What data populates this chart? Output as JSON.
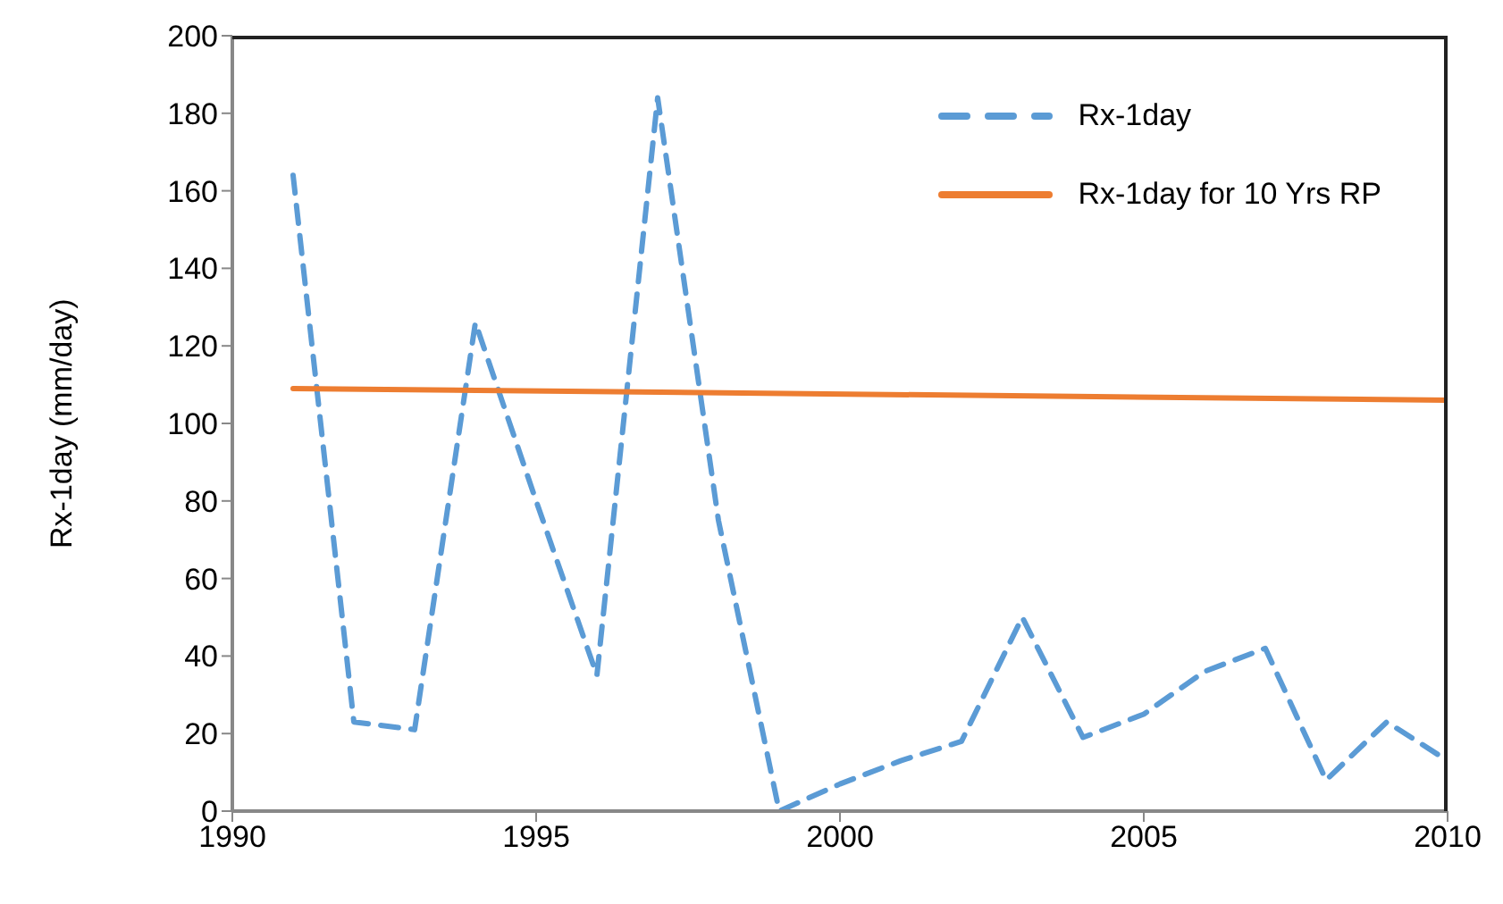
{
  "chart_data": {
    "type": "line",
    "ylabel": "Rx-1day (mm/day)",
    "x": [
      1991,
      1992,
      1993,
      1994,
      1995,
      1996,
      1997,
      1998,
      1999,
      2000,
      2001,
      2002,
      2003,
      2004,
      2005,
      2006,
      2007,
      2008,
      2009,
      2010
    ],
    "series": [
      {
        "name": "Rx-1day",
        "color": "#5b9bd5",
        "line_style": "dashed",
        "values": [
          164,
          23,
          21,
          126,
          80,
          35,
          184,
          75,
          0,
          7,
          13,
          18,
          50,
          19,
          25,
          36,
          42,
          8,
          23,
          13
        ]
      },
      {
        "name": "Rx-1day for 10 Yrs RP",
        "color": "#ed7d31",
        "line_style": "solid",
        "x": [
          1991,
          2010
        ],
        "values": [
          109,
          106
        ]
      }
    ],
    "xlim": [
      1990,
      2010
    ],
    "xticks": [
      1990,
      1995,
      2000,
      2005,
      2010
    ],
    "ylim": [
      0,
      200
    ],
    "yticks": [
      0,
      20,
      40,
      60,
      80,
      100,
      120,
      140,
      160,
      180,
      200
    ],
    "grid": false,
    "legend": "top right",
    "marker": "none"
  }
}
